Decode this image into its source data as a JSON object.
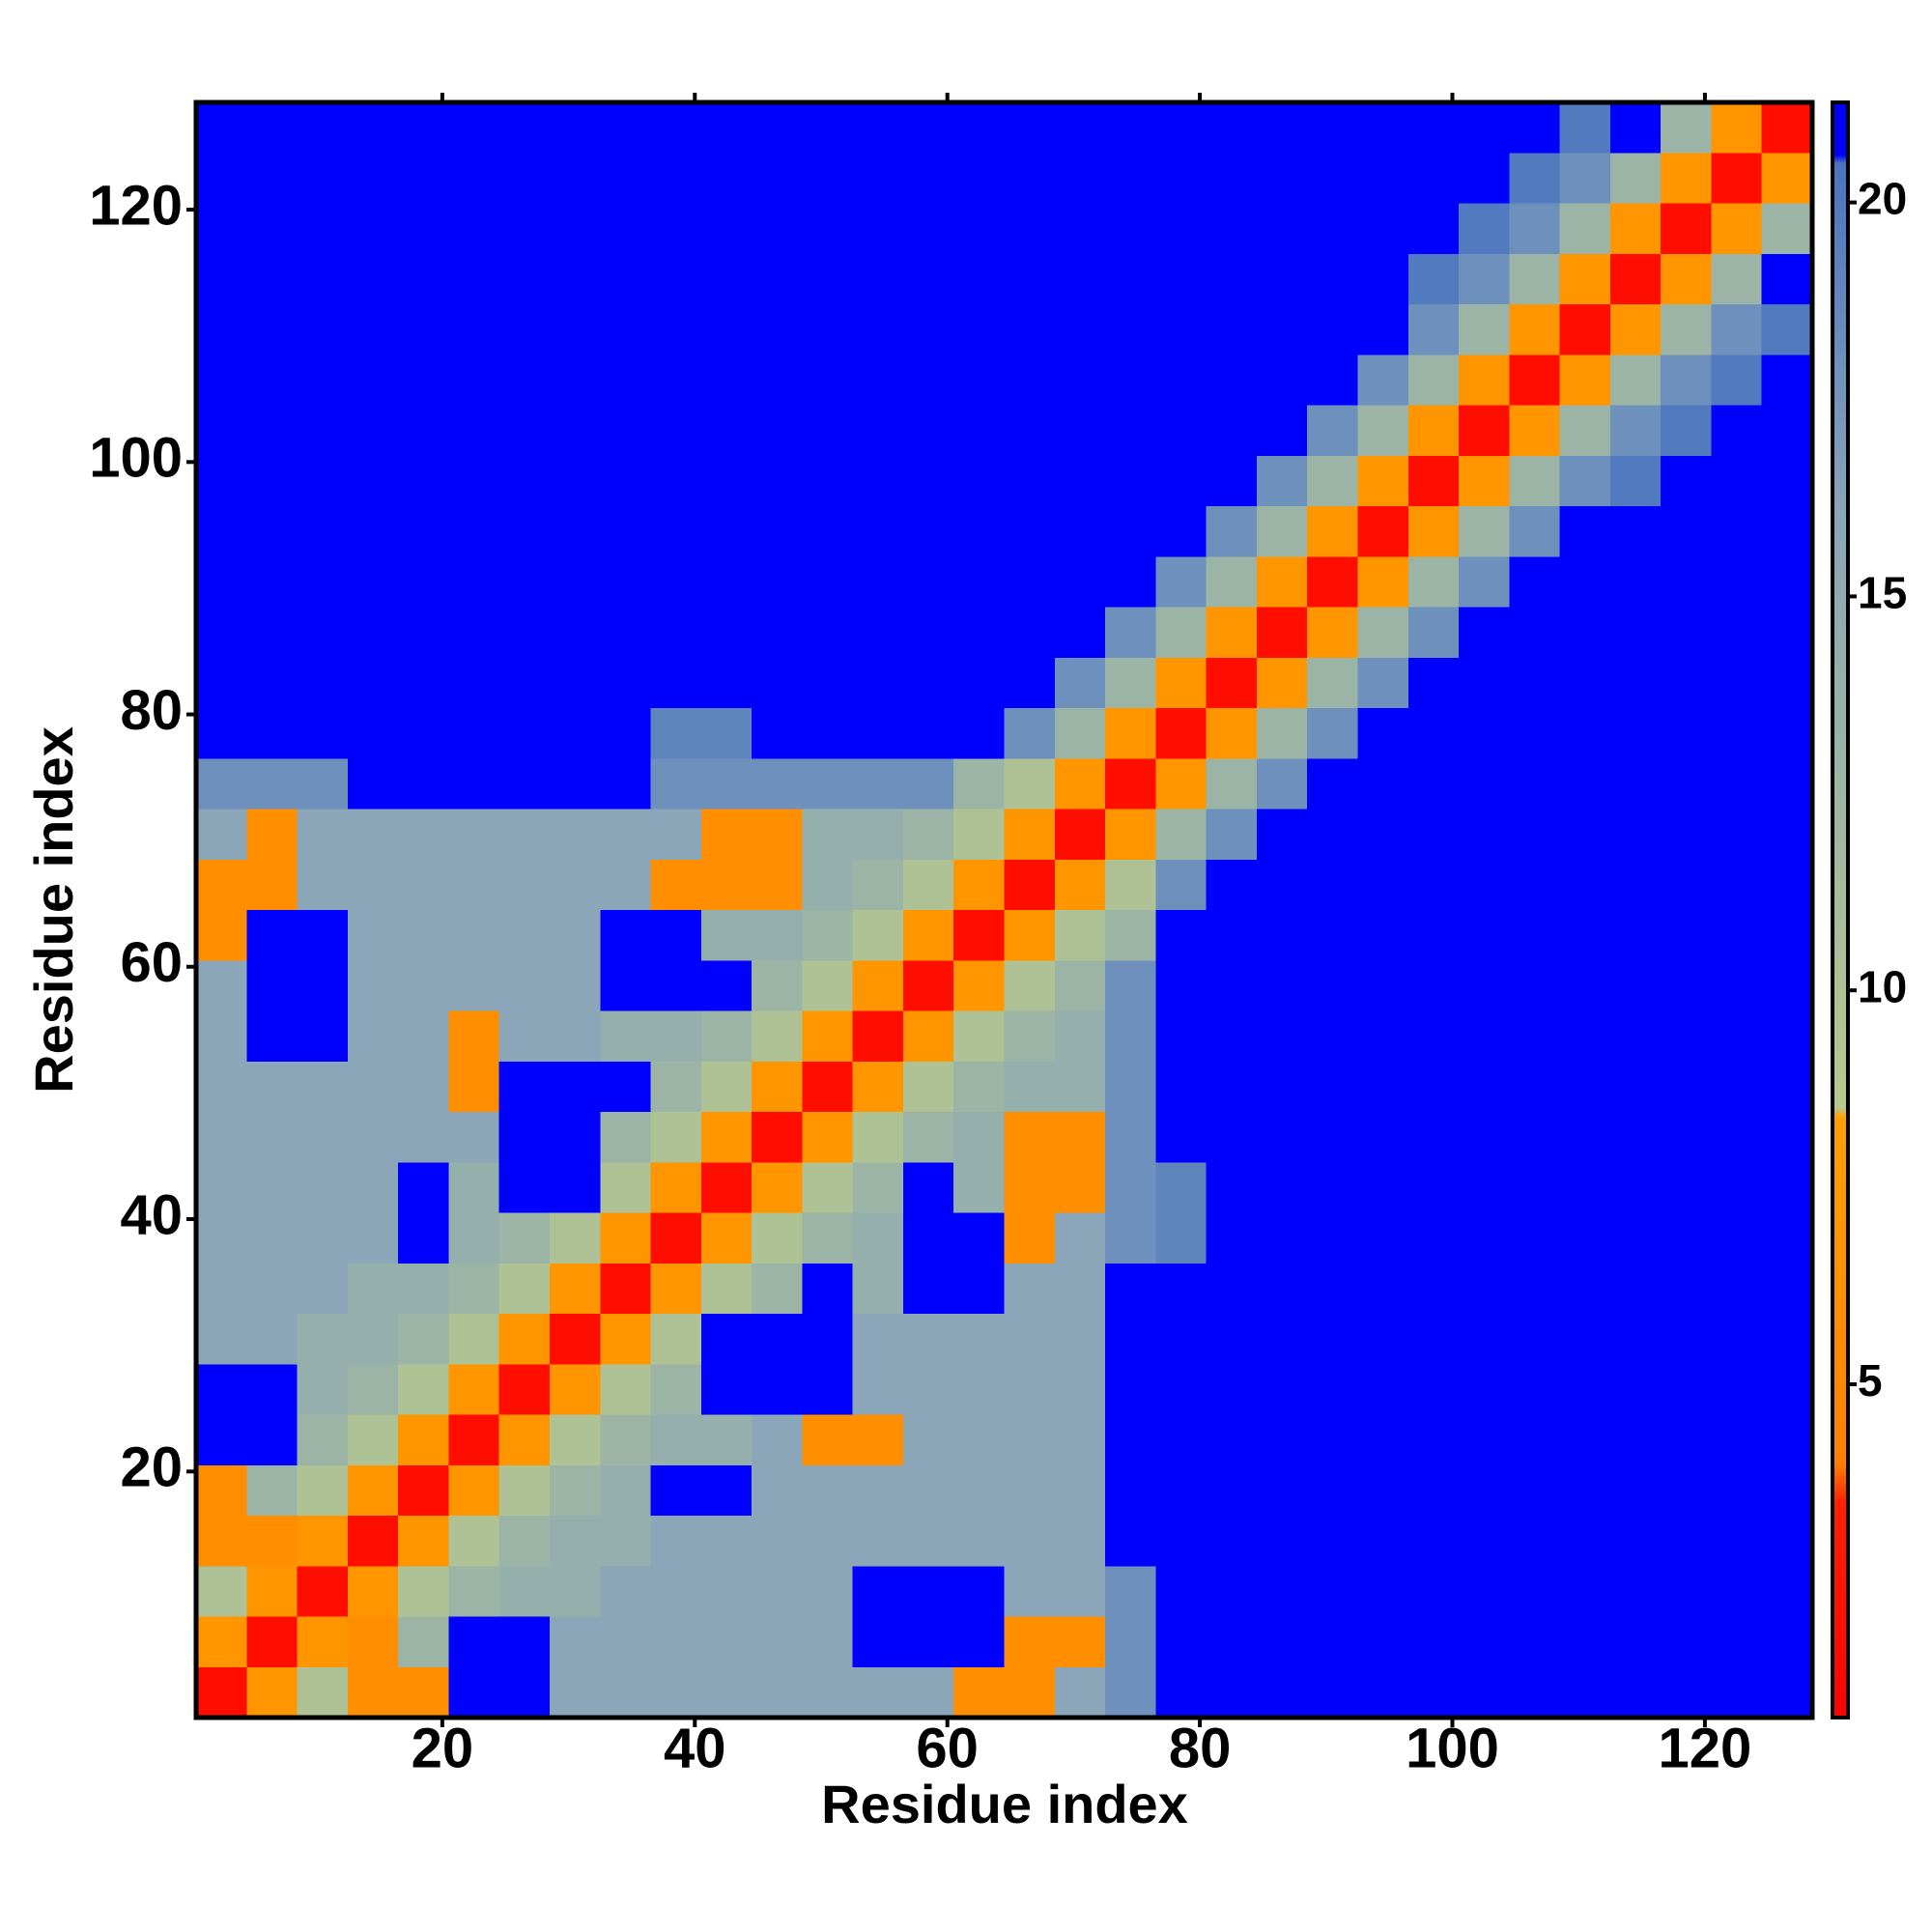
{
  "chart_data": {
    "type": "heatmap",
    "x_label": "Residue index",
    "y_label": "Residue index",
    "x": [
      2.5,
      6.5,
      10.5,
      14.5,
      18.5,
      22.5,
      26.5,
      30.5,
      34.5,
      38.5,
      42.5,
      46.5,
      50.5,
      54.5,
      58.5,
      62.5,
      66.5,
      70.5,
      74.5,
      78.5,
      82.5,
      86.5,
      90.5,
      94.5,
      98.5,
      102.5,
      106.5,
      110.5,
      114.5,
      118.5,
      122.5,
      126.5
    ],
    "y": [
      2.5,
      6.5,
      10.5,
      14.5,
      18.5,
      22.5,
      26.5,
      30.5,
      34.5,
      38.5,
      42.5,
      46.5,
      50.5,
      54.5,
      58.5,
      62.5,
      66.5,
      70.5,
      74.5,
      78.5,
      82.5,
      86.5,
      90.5,
      94.5,
      98.5,
      102.5,
      106.5,
      110.5,
      114.5,
      118.5,
      122.5,
      126.5
    ],
    "xlim": [
      0.5,
      128.5
    ],
    "ylim": [
      0.5,
      128.5
    ],
    "xticks": [
      20,
      40,
      60,
      80,
      100,
      120
    ],
    "yticks": [
      20,
      40,
      60,
      80,
      100,
      120
    ],
    "clim": [
      0.77,
      21.27
    ],
    "cticks": [
      5,
      10,
      15,
      20
    ],
    "colorscale": [
      [
        0.77,
        "#ff0000"
      ],
      [
        3.5,
        "#ff2000"
      ],
      [
        4,
        "#ff8000"
      ],
      [
        8.4,
        "#ffa000"
      ],
      [
        8.5,
        "#b8c98c"
      ],
      [
        12,
        "#a0b8a0"
      ],
      [
        16,
        "#8aa6b8"
      ],
      [
        20.5,
        "#4a74c0"
      ],
      [
        20.6,
        "#0000ff"
      ],
      [
        21.27,
        "#0000ff"
      ]
    ],
    "z": [
      [
        2,
        7,
        10,
        6,
        6,
        22,
        22,
        16,
        16,
        16,
        16,
        16,
        16,
        16,
        16,
        6,
        6,
        16,
        18,
        22,
        22,
        22,
        22,
        22,
        22,
        22,
        22,
        22,
        22,
        22,
        22,
        22
      ],
      [
        7,
        2,
        7,
        6,
        13,
        22,
        22,
        16,
        16,
        16,
        16,
        16,
        16,
        22,
        22,
        22,
        6,
        6,
        18,
        22,
        22,
        22,
        22,
        22,
        22,
        22,
        22,
        22,
        22,
        22,
        22,
        22
      ],
      [
        10,
        7,
        2,
        7,
        10,
        13,
        14,
        14,
        16,
        16,
        16,
        16,
        16,
        22,
        22,
        22,
        16,
        16,
        18,
        22,
        22,
        22,
        22,
        22,
        22,
        22,
        22,
        22,
        22,
        22,
        22,
        22
      ],
      [
        6,
        6,
        7,
        2,
        7,
        10,
        13,
        14,
        14,
        16,
        16,
        16,
        16,
        16,
        16,
        16,
        16,
        16,
        22,
        22,
        22,
        22,
        22,
        22,
        22,
        22,
        22,
        22,
        22,
        22,
        22,
        22
      ],
      [
        6,
        13,
        10,
        7,
        2,
        7,
        10,
        13,
        14,
        22,
        22,
        16,
        16,
        16,
        16,
        16,
        16,
        16,
        22,
        22,
        22,
        22,
        22,
        22,
        22,
        22,
        22,
        22,
        22,
        22,
        22,
        22
      ],
      [
        22,
        22,
        13,
        10,
        7,
        2,
        7,
        10,
        13,
        14,
        14,
        16,
        6,
        6,
        16,
        16,
        16,
        16,
        22,
        22,
        22,
        22,
        22,
        22,
        22,
        22,
        22,
        22,
        22,
        22,
        22,
        22
      ],
      [
        22,
        22,
        14,
        13,
        10,
        7,
        2,
        7,
        10,
        13,
        22,
        22,
        22,
        16,
        16,
        16,
        16,
        16,
        22,
        22,
        22,
        22,
        22,
        22,
        22,
        22,
        22,
        22,
        22,
        22,
        22,
        22
      ],
      [
        16,
        16,
        14,
        14,
        13,
        10,
        7,
        2,
        7,
        10,
        22,
        22,
        22,
        16,
        16,
        16,
        16,
        16,
        22,
        22,
        22,
        22,
        22,
        22,
        22,
        22,
        22,
        22,
        22,
        22,
        22,
        22
      ],
      [
        16,
        16,
        16,
        14,
        14,
        13,
        10,
        7,
        2,
        7,
        10,
        13,
        22,
        14,
        22,
        22,
        16,
        16,
        22,
        22,
        22,
        22,
        22,
        22,
        22,
        22,
        22,
        22,
        22,
        22,
        22,
        22
      ],
      [
        16,
        16,
        16,
        16,
        22,
        14,
        13,
        10,
        7,
        2,
        7,
        10,
        13,
        14,
        22,
        22,
        6,
        16,
        18,
        19,
        22,
        22,
        22,
        22,
        22,
        22,
        22,
        22,
        22,
        22,
        22,
        22
      ],
      [
        16,
        16,
        16,
        16,
        22,
        14,
        22,
        22,
        10,
        7,
        2,
        7,
        10,
        13,
        22,
        14,
        6,
        6,
        18,
        19,
        22,
        22,
        22,
        22,
        22,
        22,
        22,
        22,
        22,
        22,
        22,
        22
      ],
      [
        16,
        16,
        16,
        16,
        16,
        16,
        22,
        22,
        13,
        10,
        7,
        2,
        7,
        10,
        13,
        14,
        6,
        6,
        18,
        22,
        22,
        22,
        22,
        22,
        22,
        22,
        22,
        22,
        22,
        22,
        22,
        22
      ],
      [
        16,
        16,
        16,
        16,
        16,
        6,
        22,
        22,
        22,
        13,
        10,
        7,
        2,
        7,
        10,
        13,
        14,
        14,
        18,
        22,
        22,
        22,
        22,
        22,
        22,
        22,
        22,
        22,
        22,
        22,
        22,
        22
      ],
      [
        16,
        22,
        22,
        16,
        16,
        6,
        16,
        16,
        14,
        14,
        13,
        10,
        7,
        2,
        7,
        10,
        13,
        14,
        18,
        22,
        22,
        22,
        22,
        22,
        22,
        22,
        22,
        22,
        22,
        22,
        22,
        22
      ],
      [
        16,
        22,
        22,
        16,
        16,
        16,
        16,
        16,
        22,
        22,
        22,
        13,
        10,
        7,
        2,
        7,
        10,
        13,
        18,
        22,
        22,
        22,
        22,
        22,
        22,
        22,
        22,
        22,
        22,
        22,
        22,
        22
      ],
      [
        6,
        22,
        22,
        16,
        16,
        16,
        16,
        16,
        22,
        22,
        14,
        14,
        13,
        10,
        7,
        2,
        7,
        10,
        13,
        22,
        22,
        22,
        22,
        22,
        22,
        22,
        22,
        22,
        22,
        22,
        22,
        22
      ],
      [
        6,
        6,
        16,
        16,
        16,
        16,
        16,
        16,
        16,
        6,
        6,
        6,
        14,
        13,
        10,
        7,
        2,
        7,
        10,
        18,
        22,
        22,
        22,
        22,
        22,
        22,
        22,
        22,
        22,
        22,
        22,
        22
      ],
      [
        16,
        6,
        16,
        16,
        16,
        16,
        16,
        16,
        16,
        16,
        6,
        6,
        14,
        14,
        13,
        10,
        7,
        2,
        7,
        13,
        18,
        22,
        22,
        22,
        22,
        22,
        22,
        22,
        22,
        22,
        22,
        22
      ],
      [
        18,
        18,
        18,
        22,
        22,
        22,
        22,
        22,
        22,
        18,
        18,
        18,
        18,
        18,
        18,
        13,
        10,
        7,
        2,
        7,
        13,
        18,
        22,
        22,
        22,
        22,
        22,
        22,
        22,
        22,
        22,
        22
      ],
      [
        22,
        22,
        22,
        22,
        22,
        22,
        22,
        22,
        22,
        19,
        19,
        22,
        22,
        22,
        22,
        22,
        18,
        13,
        7,
        2,
        7,
        13,
        18,
        22,
        22,
        22,
        22,
        22,
        22,
        22,
        22,
        22
      ],
      [
        22,
        22,
        22,
        22,
        22,
        22,
        22,
        22,
        22,
        22,
        22,
        22,
        22,
        22,
        22,
        22,
        22,
        18,
        13,
        7,
        2,
        7,
        13,
        18,
        22,
        22,
        22,
        22,
        22,
        22,
        22,
        22
      ],
      [
        22,
        22,
        22,
        22,
        22,
        22,
        22,
        22,
        22,
        22,
        22,
        22,
        22,
        22,
        22,
        22,
        22,
        22,
        18,
        13,
        7,
        2,
        7,
        13,
        18,
        22,
        22,
        22,
        22,
        22,
        22,
        22
      ],
      [
        22,
        22,
        22,
        22,
        22,
        22,
        22,
        22,
        22,
        22,
        22,
        22,
        22,
        22,
        22,
        22,
        22,
        22,
        22,
        18,
        13,
        7,
        2,
        7,
        13,
        18,
        22,
        22,
        22,
        22,
        22,
        22
      ],
      [
        22,
        22,
        22,
        22,
        22,
        22,
        22,
        22,
        22,
        22,
        22,
        22,
        22,
        22,
        22,
        22,
        22,
        22,
        22,
        22,
        18,
        13,
        7,
        2,
        7,
        13,
        18,
        22,
        22,
        22,
        22,
        22
      ],
      [
        22,
        22,
        22,
        22,
        22,
        22,
        22,
        22,
        22,
        22,
        22,
        22,
        22,
        22,
        22,
        22,
        22,
        22,
        22,
        22,
        22,
        18,
        13,
        7,
        2,
        7,
        13,
        18,
        20,
        22,
        22,
        22
      ],
      [
        22,
        22,
        22,
        22,
        22,
        22,
        22,
        22,
        22,
        22,
        22,
        22,
        22,
        22,
        22,
        22,
        22,
        22,
        22,
        22,
        22,
        22,
        18,
        13,
        7,
        2,
        7,
        13,
        18,
        20,
        22,
        22
      ],
      [
        22,
        22,
        22,
        22,
        22,
        22,
        22,
        22,
        22,
        22,
        22,
        22,
        22,
        22,
        22,
        22,
        22,
        22,
        22,
        22,
        22,
        22,
        22,
        18,
        13,
        7,
        2,
        7,
        13,
        18,
        20,
        22
      ],
      [
        22,
        22,
        22,
        22,
        22,
        22,
        22,
        22,
        22,
        22,
        22,
        22,
        22,
        22,
        22,
        22,
        22,
        22,
        22,
        22,
        22,
        22,
        22,
        22,
        18,
        13,
        7,
        2,
        7,
        13,
        18,
        20
      ],
      [
        22,
        22,
        22,
        22,
        22,
        22,
        22,
        22,
        22,
        22,
        22,
        22,
        22,
        22,
        22,
        22,
        22,
        22,
        22,
        22,
        22,
        22,
        22,
        22,
        20,
        18,
        13,
        7,
        2,
        7,
        13,
        22
      ],
      [
        22,
        22,
        22,
        22,
        22,
        22,
        22,
        22,
        22,
        22,
        22,
        22,
        22,
        22,
        22,
        22,
        22,
        22,
        22,
        22,
        22,
        22,
        22,
        22,
        22,
        20,
        18,
        13,
        7,
        2,
        7,
        13
      ],
      [
        22,
        22,
        22,
        22,
        22,
        22,
        22,
        22,
        22,
        22,
        22,
        22,
        22,
        22,
        22,
        22,
        22,
        22,
        22,
        22,
        22,
        22,
        22,
        22,
        22,
        22,
        20,
        18,
        13,
        7,
        2,
        7
      ],
      [
        22,
        22,
        22,
        22,
        22,
        22,
        22,
        22,
        22,
        22,
        22,
        22,
        22,
        22,
        22,
        22,
        22,
        22,
        22,
        22,
        22,
        22,
        22,
        22,
        22,
        22,
        22,
        20,
        22,
        13,
        7,
        2
      ]
    ]
  }
}
